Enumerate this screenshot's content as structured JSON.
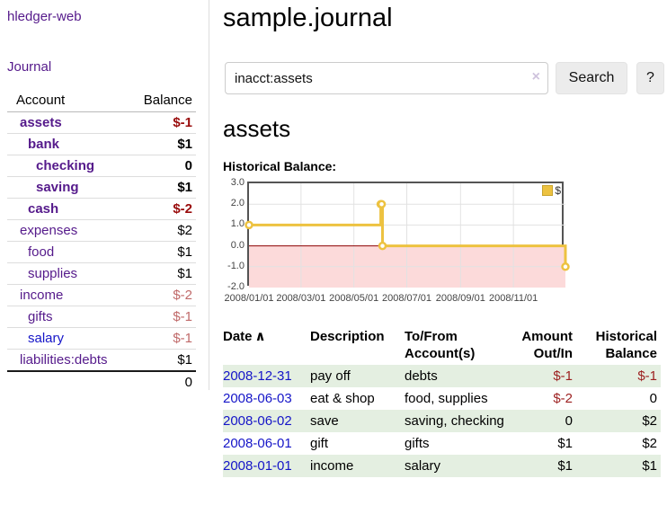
{
  "app": {
    "title": "hledger-web",
    "nav_journal": "Journal"
  },
  "sidebar": {
    "header": {
      "account": "Account",
      "balance": "Balance"
    },
    "rows": [
      {
        "name": "assets",
        "balance": "$-1"
      },
      {
        "name": "bank",
        "balance": "$1"
      },
      {
        "name": "checking",
        "balance": "0"
      },
      {
        "name": "saving",
        "balance": "$1"
      },
      {
        "name": "cash",
        "balance": "$-2"
      },
      {
        "name": "expenses",
        "balance": "$2"
      },
      {
        "name": "food",
        "balance": "$1"
      },
      {
        "name": "supplies",
        "balance": "$1"
      },
      {
        "name": "income",
        "balance": "$-2"
      },
      {
        "name": "gifts",
        "balance": "$-1"
      },
      {
        "name": "salary",
        "balance": "$-1"
      },
      {
        "name": "liabilities:debts",
        "balance": "$1"
      }
    ],
    "total": "0"
  },
  "main": {
    "title": "sample.journal",
    "search": {
      "value": "inacct:assets",
      "clear_icon": "×",
      "button_label": "Search",
      "help_label": "?"
    },
    "account_heading": "assets",
    "chart_label": "Historical Balance:"
  },
  "chart_data": {
    "type": "line",
    "title": "Historical Balance",
    "series": [
      {
        "name": "$",
        "points": [
          [
            "2008-01-01",
            1
          ],
          [
            "2008-06-01",
            2
          ],
          [
            "2008-06-02",
            2
          ],
          [
            "2008-06-03",
            0
          ],
          [
            "2008-12-31",
            -1
          ]
        ]
      }
    ],
    "interpolation": "step-after",
    "line_color": "#edc240",
    "negative_fill": "#fcdada",
    "zero_line_color": "#8b0000",
    "xrange": [
      "2008-01-01",
      "2008-12-31"
    ],
    "ylim": [
      -2,
      3
    ],
    "yticks": [
      3,
      2,
      1,
      0,
      -1,
      -2
    ],
    "ytick_labels": [
      "3.0",
      "2.0",
      "1.0",
      "0.0",
      "-1.0",
      "-2.0"
    ],
    "xticks": [
      "2008-01-01",
      "2008-03-01",
      "2008-05-01",
      "2008-07-01",
      "2008-09-01",
      "2008-11-01"
    ],
    "xtick_labels": [
      "2008/01/01",
      "2008/03/01",
      "2008/05/01",
      "2008/07/01",
      "2008/09/01",
      "2008/11/01"
    ],
    "legend": {
      "label": "$",
      "position": "top-right"
    },
    "grid": true
  },
  "register": {
    "sort_icon": "∧",
    "headers": {
      "date": "Date",
      "description": "Description",
      "accounts": "To/From Account(s)",
      "amount": "Amount Out/In",
      "balance": "Historical Balance"
    },
    "rows": [
      {
        "date": "2008-12-31",
        "description": "pay off",
        "accounts": "debts",
        "amount": "$-1",
        "balance": "$-1"
      },
      {
        "date": "2008-06-03",
        "description": "eat & shop",
        "accounts": "food, supplies",
        "amount": "$-2",
        "balance": "0"
      },
      {
        "date": "2008-06-02",
        "description": "save",
        "accounts": "saving, checking",
        "amount": "0",
        "balance": "$2"
      },
      {
        "date": "2008-06-01",
        "description": "gift",
        "accounts": "gifts",
        "amount": "$1",
        "balance": "$2"
      },
      {
        "date": "2008-01-01",
        "description": "income",
        "accounts": "salary",
        "amount": "$1",
        "balance": "$1"
      }
    ]
  }
}
